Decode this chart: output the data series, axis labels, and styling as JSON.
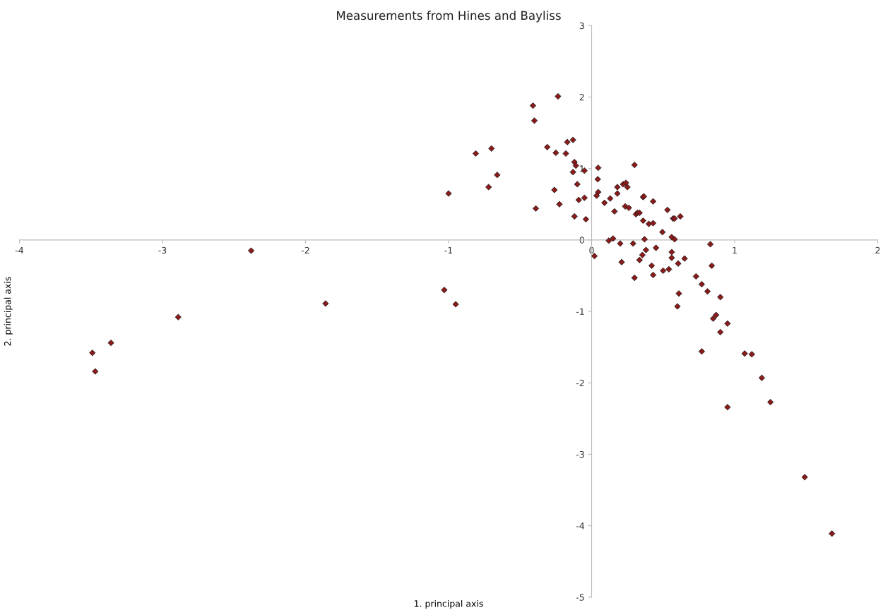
{
  "chart_data": {
    "type": "scatter",
    "title": "Measurements from Hines and Bayliss",
    "xlabel": "1. principal axis",
    "ylabel": "2. principal axis",
    "xlim": [
      -4,
      2
    ],
    "xticks": [
      -4,
      -3,
      -2,
      -1,
      0,
      1,
      2
    ],
    "ylim": [
      -5,
      3
    ],
    "yticks": [
      -5,
      -4,
      -3,
      -2,
      -1,
      0,
      1,
      2,
      3
    ],
    "grid": false,
    "legend": false,
    "marker": "diamond",
    "series": [
      {
        "color": "#8b1a1a",
        "x": [
          -3.49,
          -3.47,
          -3.36,
          -2.89,
          -2.38,
          -1.86,
          -1.03,
          -0.95,
          -1.0,
          -0.235,
          -0.41,
          -0.4,
          -0.17,
          -0.13,
          -0.31,
          -0.25,
          -0.18,
          -0.12,
          -0.11,
          -0.13,
          -0.05,
          -0.1,
          -0.26,
          -0.09,
          -0.05,
          -0.225,
          -0.39,
          -0.12,
          -0.04,
          -0.81,
          -0.7,
          -0.66,
          -0.72,
          0.046,
          0.3,
          0.043,
          0.046,
          0.035,
          0.18,
          0.22,
          0.24,
          0.25,
          0.18,
          0.13,
          0.09,
          0.16,
          0.235,
          0.26,
          0.36,
          0.365,
          0.43,
          0.31,
          0.32,
          0.335,
          0.36,
          0.4,
          0.43,
          0.53,
          0.57,
          0.58,
          0.62,
          0.495,
          0.56,
          0.58,
          0.12,
          0.15,
          0.2,
          0.29,
          0.37,
          0.45,
          0.38,
          0.355,
          0.56,
          0.56,
          0.65,
          0.335,
          0.21,
          0.02,
          0.42,
          0.605,
          0.83,
          0.84,
          0.5,
          0.54,
          0.43,
          0.3,
          0.73,
          0.77,
          0.81,
          0.9,
          0.61,
          0.6,
          0.85,
          0.87,
          0.95,
          0.9,
          0.77,
          1.07,
          1.12,
          1.19,
          1.25,
          0.95,
          1.49,
          1.68
        ],
        "values": [
          -1.58,
          -1.84,
          -1.44,
          -1.08,
          -0.15,
          -0.89,
          -0.7,
          -0.9,
          0.65,
          2.01,
          1.88,
          1.67,
          1.37,
          1.4,
          1.3,
          1.22,
          1.21,
          1.09,
          1.04,
          0.95,
          0.97,
          0.78,
          0.7,
          0.56,
          0.59,
          0.5,
          0.44,
          0.33,
          0.29,
          1.21,
          1.28,
          0.91,
          0.74,
          1.01,
          1.05,
          0.85,
          0.67,
          0.62,
          0.74,
          0.78,
          0.8,
          0.74,
          0.65,
          0.58,
          0.52,
          0.4,
          0.47,
          0.45,
          0.6,
          0.61,
          0.54,
          0.36,
          0.38,
          0.38,
          0.27,
          0.225,
          0.235,
          0.42,
          0.3,
          0.3,
          0.33,
          0.11,
          0.04,
          0.01,
          -0.01,
          0.02,
          -0.05,
          -0.05,
          0.01,
          -0.11,
          -0.14,
          -0.21,
          -0.17,
          -0.25,
          -0.26,
          -0.28,
          -0.31,
          -0.225,
          -0.36,
          -0.33,
          -0.06,
          -0.36,
          -0.43,
          -0.41,
          -0.49,
          -0.53,
          -0.51,
          -0.62,
          -0.72,
          -0.8,
          -0.75,
          -0.93,
          -1.1,
          -1.05,
          -1.17,
          -1.29,
          -1.56,
          -1.59,
          -1.6,
          -1.93,
          -2.27,
          -2.34,
          -3.32,
          -4.11
        ]
      }
    ]
  }
}
